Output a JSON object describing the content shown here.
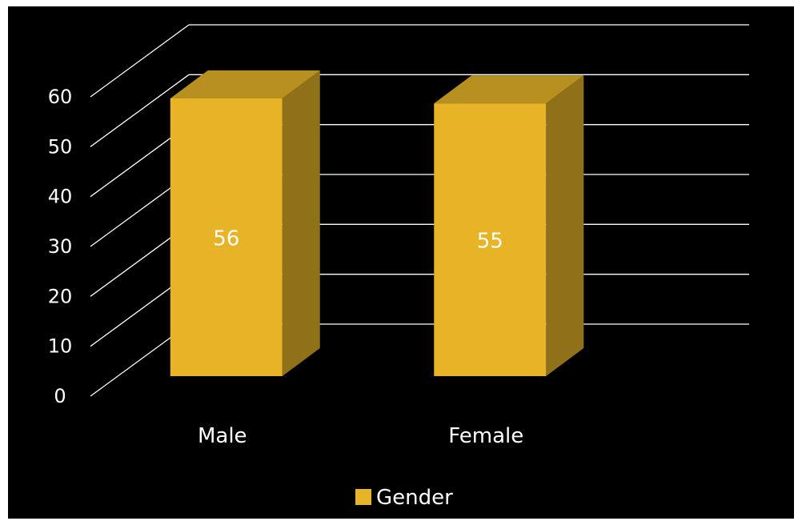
{
  "chart_data": {
    "type": "bar",
    "style": "3d-column",
    "categories": [
      "Male",
      "Female"
    ],
    "series": [
      {
        "name": "Gender",
        "values": [
          56,
          55
        ]
      }
    ],
    "data_labels": [
      "56",
      "55"
    ],
    "ylim": [
      0,
      60
    ],
    "yticks": [
      0,
      10,
      20,
      30,
      40,
      50,
      60
    ],
    "grid": true,
    "legend_position": "bottom",
    "title": "",
    "xlabel": "",
    "ylabel": ""
  },
  "colors": {
    "background": "#000000",
    "gridline": "#ffffff",
    "bar_front": "#e6b426",
    "bar_top": "#b8901f",
    "bar_side": "#8f711a",
    "text": "#ffffff",
    "data_label": "#ffffff"
  }
}
